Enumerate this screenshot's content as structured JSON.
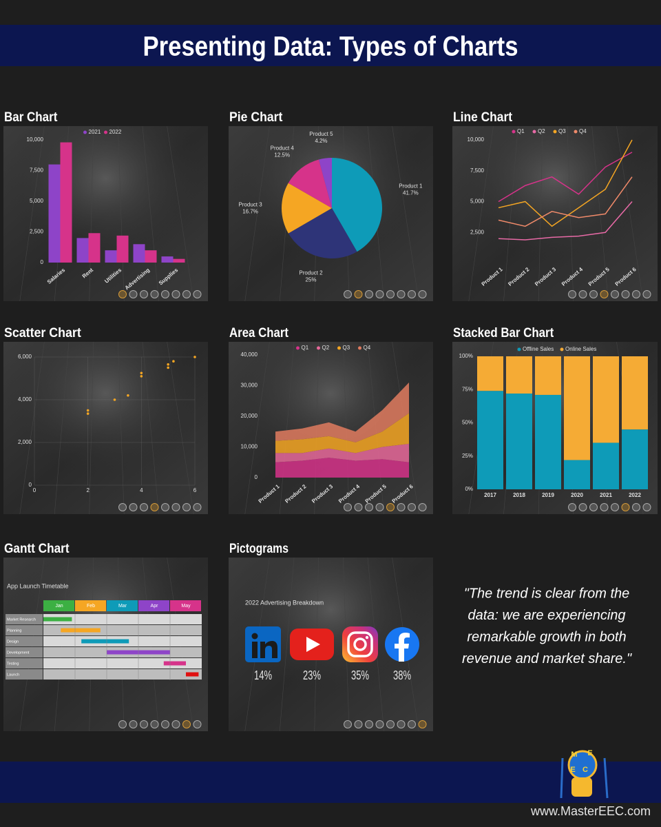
{
  "header": {
    "title": "Presenting Data: Types of Charts"
  },
  "chart_data": [
    {
      "type": "bar",
      "title": "Bar Chart",
      "categories": [
        "Salaries",
        "Rent",
        "Utilities",
        "Advertising",
        "Supplies"
      ],
      "series": [
        {
          "name": "2021",
          "color": "#8e44c8",
          "values": [
            8000,
            2000,
            1000,
            1500,
            500
          ]
        },
        {
          "name": "2022",
          "color": "#d6338a",
          "values": [
            9800,
            2400,
            2200,
            1000,
            300
          ]
        }
      ],
      "ylim": [
        0,
        10000
      ],
      "yticks": [
        0,
        {
          "value": 2500,
          "label": "2,500"
        },
        {
          "value": 5000,
          "label": "5,000"
        },
        {
          "value": 7500,
          "label": "7,500"
        },
        {
          "value": 10000,
          "label": "10,000"
        }
      ],
      "grid": false
    },
    {
      "type": "pie",
      "title": "Pie Chart",
      "categories": [
        "Product 1",
        "Product 2",
        "Product 3",
        "Product 4",
        "Product 5"
      ],
      "values": [
        41.7,
        25,
        16.7,
        12.5,
        4.2
      ],
      "value_labels": [
        "41.7%",
        "25%",
        "16.7%",
        "12.5%",
        "4.2%"
      ],
      "colors": [
        "#0e9bb8",
        "#2e3478",
        "#f5a623",
        "#d6338a",
        "#8e44c8"
      ]
    },
    {
      "type": "line",
      "title": "Line Chart",
      "categories": [
        "Product 1",
        "Product 2",
        "Product 3",
        "Product 4",
        "Product 5",
        "Product 6"
      ],
      "series": [
        {
          "name": "Q1",
          "color": "#d6338a",
          "values": [
            5000,
            6300,
            7000,
            5600,
            7800,
            9000
          ]
        },
        {
          "name": "Q2",
          "color": "#e86aa6",
          "values": [
            2000,
            1900,
            2100,
            2200,
            2500,
            5000
          ]
        },
        {
          "name": "Q3",
          "color": "#f5a623",
          "values": [
            4500,
            5000,
            3000,
            4500,
            6000,
            10000
          ]
        },
        {
          "name": "Q4",
          "color": "#f08a6a",
          "values": [
            3500,
            3000,
            4200,
            3700,
            4000,
            7000
          ]
        }
      ],
      "ylim": [
        0,
        10000
      ],
      "yticks": [
        {
          "value": 2500,
          "label": "2,500"
        },
        {
          "value": 5000,
          "label": "5,000"
        },
        {
          "value": 7500,
          "label": "7,500"
        },
        {
          "value": 10000,
          "label": "10,000"
        }
      ],
      "grid": false
    },
    {
      "type": "scatter",
      "title": "Scatter Chart",
      "x": [
        2,
        2,
        3,
        3.5,
        4,
        4,
        5,
        5,
        5.2,
        6
      ],
      "values": [
        3500,
        3350,
        4000,
        4200,
        5100,
        5250,
        5500,
        5650,
        5800,
        6000
      ],
      "color": "#f5a623",
      "xlim": [
        0,
        6
      ],
      "xticks": [
        0,
        2,
        4,
        6
      ],
      "ylim": [
        0,
        6000
      ],
      "yticks": [
        0,
        {
          "value": 2000,
          "label": "2,000"
        },
        {
          "value": 4000,
          "label": "4,000"
        },
        {
          "value": 6000,
          "label": "6,000"
        }
      ],
      "grid": true
    },
    {
      "type": "area",
      "title": "Area Chart",
      "stacked": true,
      "categories": [
        "Product 1",
        "Product 2",
        "Product 3",
        "Product 4",
        "Product 5",
        "Product 6"
      ],
      "series": [
        {
          "name": "Q1",
          "color": "#d6338a",
          "values": [
            5000,
            5500,
            6500,
            5500,
            6000,
            5000
          ]
        },
        {
          "name": "Q2",
          "color": "#e8699a",
          "values": [
            3000,
            2500,
            3000,
            2500,
            4000,
            6000
          ]
        },
        {
          "name": "Q3",
          "color": "#f5a623",
          "values": [
            4000,
            4500,
            4000,
            3500,
            5000,
            10000
          ]
        },
        {
          "name": "Q4",
          "color": "#e07b5f",
          "values": [
            3000,
            3500,
            4500,
            3500,
            7000,
            10000
          ]
        }
      ],
      "ylim": [
        0,
        40000
      ],
      "yticks": [
        0,
        {
          "value": 10000,
          "label": "10,000"
        },
        {
          "value": 20000,
          "label": "20,000"
        },
        {
          "value": 30000,
          "label": "30,000"
        },
        {
          "value": 40000,
          "label": "40,000"
        }
      ],
      "grid": false
    },
    {
      "type": "stacked_bar",
      "title": "Stacked Bar Chart",
      "categories": [
        "2017",
        "2018",
        "2019",
        "2020",
        "2021",
        "2022"
      ],
      "series": [
        {
          "name": "Offline Sales",
          "color": "#0e9bb8",
          "values": [
            74,
            72,
            71,
            22,
            35,
            45
          ]
        },
        {
          "name": "Online Sales",
          "color": "#f5ab35",
          "values": [
            26,
            28,
            29,
            78,
            65,
            55
          ]
        }
      ],
      "ylim": [
        0,
        100
      ],
      "yticks": [
        {
          "value": 0,
          "label": "0%"
        },
        {
          "value": 25,
          "label": "25%"
        },
        {
          "value": 50,
          "label": "50%"
        },
        {
          "value": 75,
          "label": "75%"
        },
        {
          "value": 100,
          "label": "100%"
        }
      ],
      "grid": false
    },
    {
      "type": "gantt",
      "title": "Gantt Chart",
      "subtitle": "App Launch Timetable",
      "categories": [
        "Jan",
        "Feb",
        "Mar",
        "Apr",
        "May"
      ],
      "category_colors": [
        "#3cb043",
        "#f5a623",
        "#0e9bb8",
        "#8e44c8",
        "#d6338a"
      ],
      "xlim": [
        0,
        5
      ],
      "tasks": [
        {
          "name": "Market Research",
          "start": 0,
          "end": 0.9,
          "color": "#3cb043"
        },
        {
          "name": "Planning",
          "start": 0.55,
          "end": 1.8,
          "color": "#f5a623"
        },
        {
          "name": "Design",
          "start": 1.2,
          "end": 2.7,
          "color": "#0e9bb8"
        },
        {
          "name": "Development",
          "start": 2,
          "end": 4,
          "color": "#8e44c8"
        },
        {
          "name": "Testing",
          "start": 3.8,
          "end": 4.5,
          "color": "#d6338a"
        },
        {
          "name": "Launch",
          "start": 4.5,
          "end": 4.9,
          "color": "#e01010"
        }
      ]
    },
    {
      "type": "pictogram",
      "title": "Pictograms",
      "subtitle": "2022 Advertising Breakdown",
      "values": [
        14,
        23,
        35,
        38
      ],
      "value_labels": [
        "14%",
        "23%",
        "35%",
        "38%"
      ]
    }
  ],
  "quote": [
    "\"The trend is clear from the",
    "data: we are experiencing",
    "remarkable growth in both",
    "revenue and market share.\""
  ],
  "logo_letters": [
    "M",
    "E",
    "E",
    "C"
  ],
  "footer": {
    "url": "www.MasterEEC.com"
  }
}
